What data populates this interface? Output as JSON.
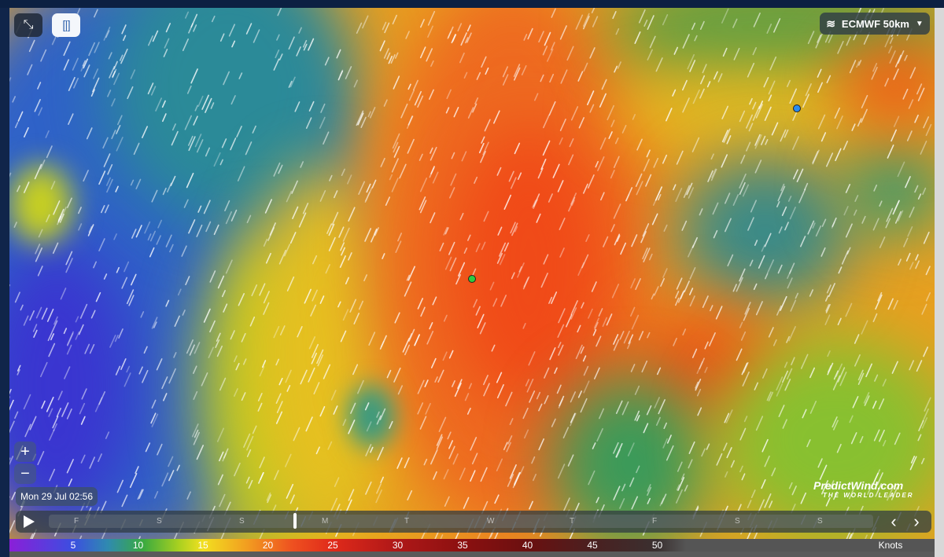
{
  "map": {
    "model_selector": {
      "label": "ECMWF 50km",
      "icon": "wind-icon"
    },
    "timestamp": "Mon 29 Jul 02:56",
    "zoom_in": "+",
    "zoom_out": "−",
    "logo": {
      "name": "PredictWind.com",
      "tagline": "THE WORLD LEADER"
    },
    "markers": [
      {
        "color": "#2ecc40"
      },
      {
        "color": "#2a8cf0"
      }
    ]
  },
  "timeline": {
    "days": [
      "F",
      "S",
      "S",
      "M",
      "T",
      "W",
      "T",
      "F",
      "S",
      "S"
    ],
    "current_position_fraction": 0.297
  },
  "legend": {
    "values": [
      "5",
      "10",
      "15",
      "20",
      "25",
      "30",
      "35",
      "40",
      "45",
      "50"
    ],
    "unit": "Knots"
  }
}
